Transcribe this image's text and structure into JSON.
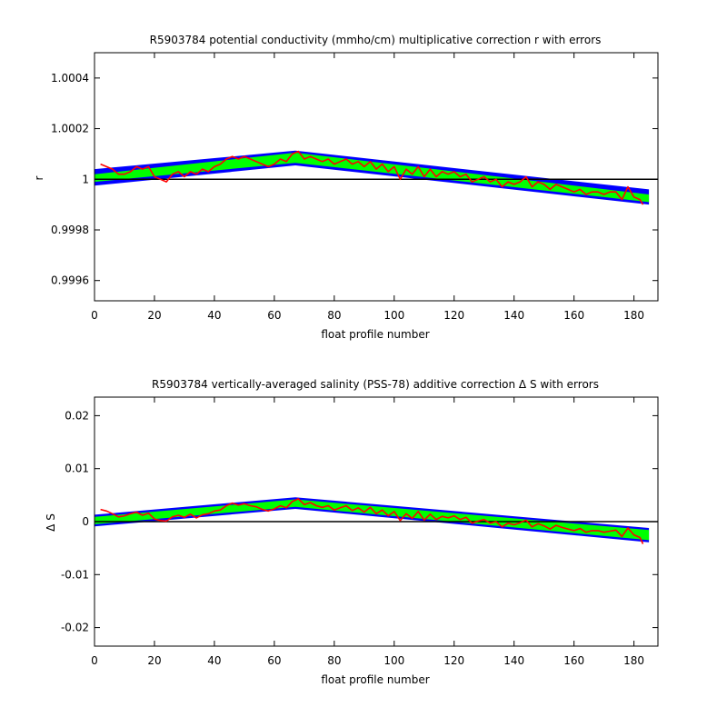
{
  "chart_data": [
    {
      "type": "line",
      "title": "R5903784 potential conductivity (mmho/cm) multiplicative correction r with errors",
      "xlabel": "float profile number",
      "ylabel": "r",
      "xlim": [
        0,
        188
      ],
      "ylim": [
        0.99952,
        1.0005
      ],
      "x_ticks": [
        0,
        20,
        40,
        60,
        80,
        100,
        120,
        140,
        160,
        180
      ],
      "y_ticks": [
        0.9996,
        0.9998,
        1,
        1.0002,
        1.0004
      ],
      "y_tick_labels": [
        "0.9996",
        "0.9998",
        "1",
        "1.0002",
        "1.0004"
      ],
      "reference_line": 1,
      "grid": false,
      "colors": {
        "outer_error": "#0000ff",
        "inner_error": "#00ff00",
        "estimate": "#ff0000",
        "reference": "#000000"
      },
      "outer_band": {
        "x": [
          0,
          67,
          185
        ],
        "upper": [
          1.00004,
          1.000113,
          0.99996
        ],
        "lower": [
          0.999975,
          1.000055,
          0.9999
        ]
      },
      "inner_band": {
        "x": [
          0,
          67,
          185
        ],
        "upper": [
          1.00002,
          1.000105,
          0.99994
        ],
        "lower": [
          0.99999,
          1.000065,
          0.99991
        ]
      },
      "series": [
        {
          "points": [
            [
              2,
              1.00006
            ],
            [
              4,
              1.00005
            ],
            [
              6,
              1.00004
            ],
            [
              8,
              1.00002
            ],
            [
              10,
              1.00002
            ],
            [
              12,
              1.00003
            ],
            [
              14,
              1.00005
            ],
            [
              16,
              1.00004
            ],
            [
              18,
              1.00005
            ],
            [
              20,
              1.00001
            ],
            [
              22,
              1.0
            ],
            [
              24,
              0.99999
            ],
            [
              26,
              1.00002
            ],
            [
              28,
              1.00003
            ],
            [
              30,
              1.00001
            ],
            [
              32,
              1.00003
            ],
            [
              34,
              1.00002
            ],
            [
              36,
              1.00004
            ],
            [
              38,
              1.00003
            ],
            [
              40,
              1.00005
            ],
            [
              42,
              1.00006
            ],
            [
              44,
              1.00008
            ],
            [
              46,
              1.00009
            ],
            [
              48,
              1.00008
            ],
            [
              50,
              1.00009
            ],
            [
              52,
              1.00008
            ],
            [
              54,
              1.00007
            ],
            [
              56,
              1.00006
            ],
            [
              58,
              1.00005
            ],
            [
              60,
              1.00006
            ],
            [
              62,
              1.00008
            ],
            [
              64,
              1.00007
            ],
            [
              66,
              1.0001
            ],
            [
              68,
              1.00011
            ],
            [
              70,
              1.00008
            ],
            [
              72,
              1.00009
            ],
            [
              74,
              1.00008
            ],
            [
              76,
              1.00007
            ],
            [
              78,
              1.00008
            ],
            [
              80,
              1.00006
            ],
            [
              82,
              1.00007
            ],
            [
              84,
              1.00008
            ],
            [
              86,
              1.00006
            ],
            [
              88,
              1.00007
            ],
            [
              90,
              1.00005
            ],
            [
              92,
              1.00007
            ],
            [
              94,
              1.00004
            ],
            [
              96,
              1.00006
            ],
            [
              98,
              1.00003
            ],
            [
              100,
              1.00005
            ],
            [
              102,
              1.0
            ],
            [
              104,
              1.00004
            ],
            [
              106,
              1.00002
            ],
            [
              108,
              1.00005
            ],
            [
              110,
              1.00001
            ],
            [
              112,
              1.00004
            ],
            [
              114,
              1.00001
            ],
            [
              116,
              1.00003
            ],
            [
              118,
              1.00002
            ],
            [
              120,
              1.00003
            ],
            [
              122,
              1.00001
            ],
            [
              124,
              1.00002
            ],
            [
              126,
              0.99999
            ],
            [
              128,
              1.0
            ],
            [
              130,
              1.00001
            ],
            [
              132,
              0.99999
            ],
            [
              134,
              1.0
            ],
            [
              136,
              0.99997
            ],
            [
              138,
              0.99999
            ],
            [
              140,
              0.99998
            ],
            [
              142,
              0.99999
            ],
            [
              144,
              1.00001
            ],
            [
              146,
              0.99997
            ],
            [
              148,
              0.99999
            ],
            [
              150,
              0.99998
            ],
            [
              152,
              0.99996
            ],
            [
              154,
              0.99998
            ],
            [
              156,
              0.99997
            ],
            [
              158,
              0.99996
            ],
            [
              160,
              0.99995
            ],
            [
              162,
              0.99996
            ],
            [
              164,
              0.99994
            ],
            [
              166,
              0.99995
            ],
            [
              168,
              0.99995
            ],
            [
              170,
              0.99994
            ],
            [
              172,
              0.99995
            ],
            [
              174,
              0.99995
            ],
            [
              176,
              0.99992
            ],
            [
              178,
              0.99997
            ],
            [
              180,
              0.99993
            ],
            [
              182,
              0.99992
            ],
            [
              183,
              0.9999
            ]
          ]
        }
      ]
    },
    {
      "type": "line",
      "title": "R5903784 vertically-averaged salinity (PSS-78) additive correction Δ S with errors",
      "xlabel": "float profile number",
      "ylabel": "Δ S",
      "xlim": [
        0,
        188
      ],
      "ylim": [
        -0.0235,
        0.0235
      ],
      "x_ticks": [
        0,
        20,
        40,
        60,
        80,
        100,
        120,
        140,
        160,
        180
      ],
      "y_ticks": [
        -0.02,
        -0.01,
        0,
        0.01,
        0.02
      ],
      "y_tick_labels": [
        "-0.02",
        "-0.01",
        "0",
        "0.01",
        "0.02"
      ],
      "reference_line": 0,
      "grid": false,
      "colors": {
        "outer_error": "#0000ff",
        "inner_error": "#00ff00",
        "estimate": "#ff0000",
        "reference": "#000000"
      },
      "outer_band": {
        "x": [
          0,
          67,
          185
        ],
        "upper": [
          0.0013,
          0.0046,
          -0.0012
        ],
        "lower": [
          -0.0009,
          0.0024,
          -0.0039
        ]
      },
      "inner_band": {
        "x": [
          0,
          67,
          185
        ],
        "upper": [
          0.0009,
          0.0042,
          -0.0016
        ],
        "lower": [
          -0.0005,
          0.0028,
          -0.0035
        ]
      },
      "series": [
        {
          "points": [
            [
              2,
              0.0023
            ],
            [
              4,
              0.002
            ],
            [
              6,
              0.0015
            ],
            [
              8,
              0.0009
            ],
            [
              10,
              0.0011
            ],
            [
              12,
              0.0015
            ],
            [
              14,
              0.0018
            ],
            [
              16,
              0.0012
            ],
            [
              18,
              0.0016
            ],
            [
              20,
              0.0005
            ],
            [
              22,
              0.0002
            ],
            [
              24,
              0.0001
            ],
            [
              26,
              0.0009
            ],
            [
              28,
              0.0012
            ],
            [
              30,
              0.0008
            ],
            [
              32,
              0.0014
            ],
            [
              34,
              0.0007
            ],
            [
              36,
              0.0013
            ],
            [
              38,
              0.0015
            ],
            [
              40,
              0.002
            ],
            [
              42,
              0.0022
            ],
            [
              44,
              0.003
            ],
            [
              46,
              0.0035
            ],
            [
              48,
              0.0031
            ],
            [
              50,
              0.0034
            ],
            [
              52,
              0.003
            ],
            [
              54,
              0.0028
            ],
            [
              56,
              0.0023
            ],
            [
              58,
              0.002
            ],
            [
              60,
              0.0024
            ],
            [
              62,
              0.003
            ],
            [
              64,
              0.0026
            ],
            [
              66,
              0.0038
            ],
            [
              68,
              0.0043
            ],
            [
              70,
              0.0032
            ],
            [
              72,
              0.0036
            ],
            [
              74,
              0.003
            ],
            [
              76,
              0.0027
            ],
            [
              78,
              0.003
            ],
            [
              80,
              0.0022
            ],
            [
              82,
              0.0026
            ],
            [
              84,
              0.003
            ],
            [
              86,
              0.0021
            ],
            [
              88,
              0.0026
            ],
            [
              90,
              0.0018
            ],
            [
              92,
              0.0027
            ],
            [
              94,
              0.0015
            ],
            [
              96,
              0.0022
            ],
            [
              98,
              0.0011
            ],
            [
              100,
              0.0019
            ],
            [
              102,
              0.0002
            ],
            [
              104,
              0.0015
            ],
            [
              106,
              0.0006
            ],
            [
              108,
              0.0019
            ],
            [
              110,
              0.0003
            ],
            [
              112,
              0.0014
            ],
            [
              114,
              0.0004
            ],
            [
              116,
              0.001
            ],
            [
              118,
              0.0007
            ],
            [
              120,
              0.0011
            ],
            [
              122,
              0.0004
            ],
            [
              124,
              0.0008
            ],
            [
              126,
              -0.0003
            ],
            [
              128,
              0.0001
            ],
            [
              130,
              0.0004
            ],
            [
              132,
              -0.0003
            ],
            [
              134,
              0.0
            ],
            [
              136,
              -0.001
            ],
            [
              138,
              -0.0003
            ],
            [
              140,
              -0.0006
            ],
            [
              142,
              -0.0002
            ],
            [
              144,
              0.0003
            ],
            [
              146,
              -0.001
            ],
            [
              148,
              -0.0004
            ],
            [
              150,
              -0.0008
            ],
            [
              152,
              -0.0014
            ],
            [
              154,
              -0.0007
            ],
            [
              156,
              -0.0011
            ],
            [
              158,
              -0.0014
            ],
            [
              160,
              -0.0017
            ],
            [
              162,
              -0.0013
            ],
            [
              164,
              -0.002
            ],
            [
              166,
              -0.0017
            ],
            [
              168,
              -0.0017
            ],
            [
              170,
              -0.002
            ],
            [
              172,
              -0.0018
            ],
            [
              174,
              -0.0016
            ],
            [
              176,
              -0.0028
            ],
            [
              178,
              -0.0012
            ],
            [
              180,
              -0.0025
            ],
            [
              182,
              -0.003
            ],
            [
              183,
              -0.0042
            ]
          ]
        }
      ]
    }
  ]
}
